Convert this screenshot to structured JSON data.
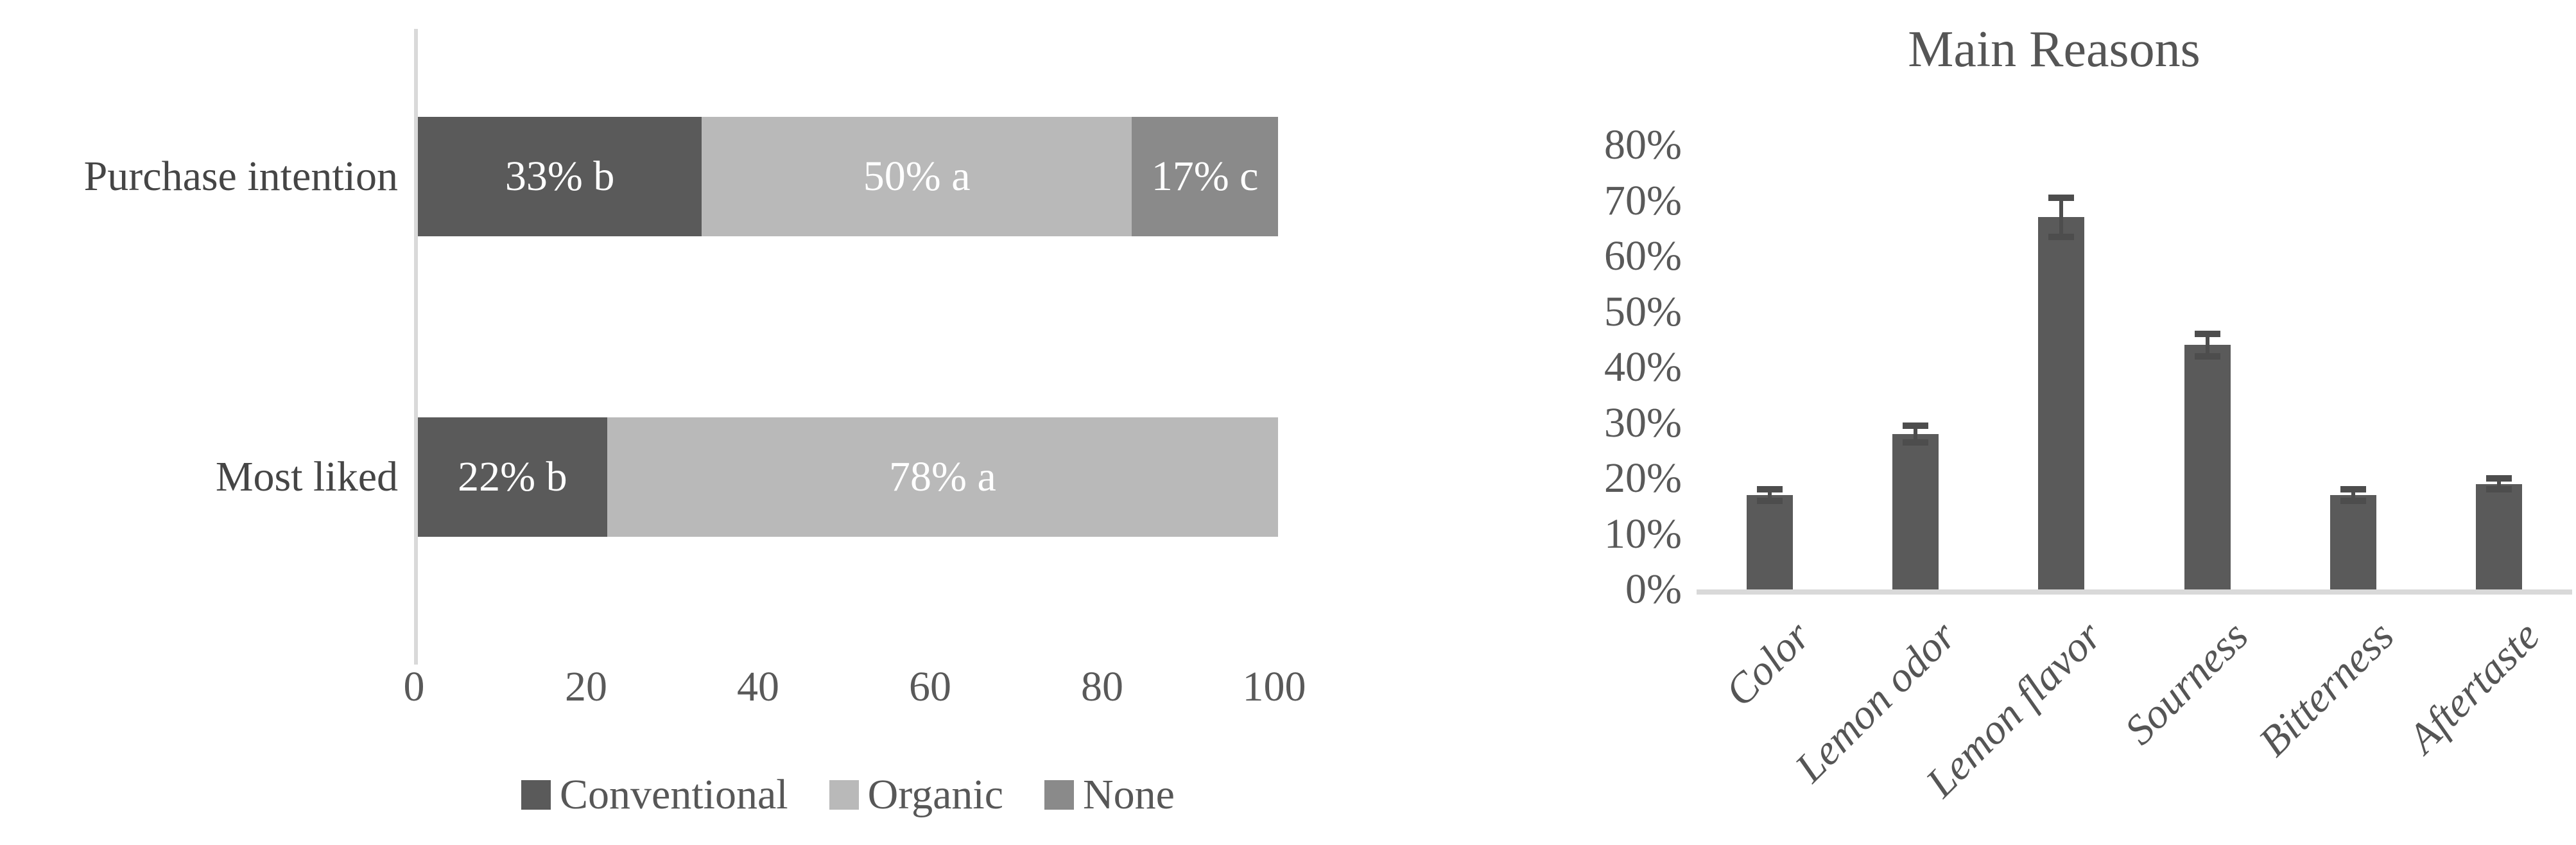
{
  "figure": {
    "background": "#ffffff",
    "text_color": "#595959",
    "axis_line_color": "#d9d9d9"
  },
  "chart_data": [
    {
      "id": "preference-comparison",
      "type": "bar",
      "subtype": "horizontal-stacked",
      "categories": [
        "Purchase intention",
        "Most liked"
      ],
      "series": [
        {
          "name": "Conventional",
          "color": "#5a5a5a",
          "values": [
            33,
            22
          ],
          "labels": [
            "33% b",
            "22% b"
          ]
        },
        {
          "name": "Organic",
          "color": "#b9b9b9",
          "values": [
            50,
            78
          ],
          "labels": [
            "50% a",
            "78% a"
          ]
        },
        {
          "name": "None",
          "color": "#8a8a8a",
          "values": [
            17,
            0
          ],
          "labels": [
            "17% c",
            ""
          ]
        }
      ],
      "x_ticks": [
        "0",
        "20",
        "40",
        "60",
        "80",
        "100"
      ],
      "xlim": [
        0,
        100
      ],
      "value_label_color": "#ffffff",
      "legend_position": "bottom",
      "grid": false,
      "legend": [
        {
          "label": "Conventional",
          "color": "#5a5a5a"
        },
        {
          "label": "Organic",
          "color": "#b9b9b9"
        },
        {
          "label": "None",
          "color": "#8a8a8a"
        }
      ]
    },
    {
      "id": "main-reasons",
      "type": "bar",
      "subtype": "vertical-with-error-bars",
      "title": "Main Reasons",
      "categories": [
        "Color",
        "Lemon odor",
        "Lemon flavor",
        "Sourness",
        "Bitterness",
        "Aftertaste"
      ],
      "values": [
        17,
        28,
        67,
        44,
        17,
        19
      ],
      "errors": [
        1,
        1.5,
        3.5,
        2,
        1,
        1
      ],
      "y_ticks": [
        "0%",
        "10%",
        "20%",
        "30%",
        "40%",
        "50%",
        "60%",
        "70%",
        "80%"
      ],
      "ylim": [
        0,
        80
      ],
      "xlabel": "",
      "ylabel": "",
      "grid": false,
      "legend_position": "none",
      "bar_color": "#5a5a5a",
      "error_bar_color": "#4d4d4d",
      "baseline_color": "#d9d9d9",
      "category_label_style": "italic-rotated-45"
    }
  ]
}
